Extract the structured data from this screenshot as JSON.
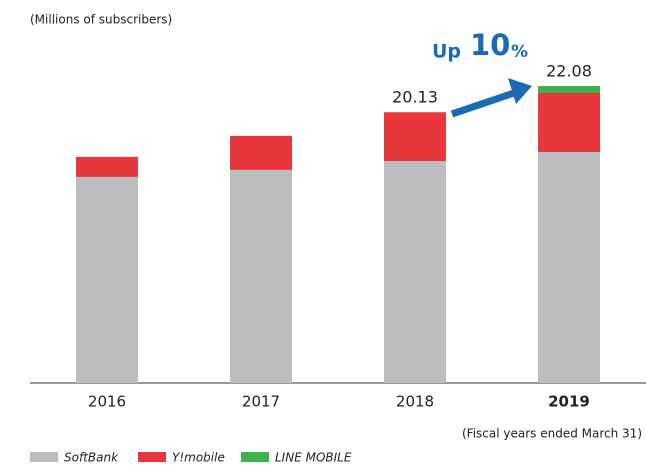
{
  "chart_data": {
    "type": "stacked_bar",
    "y_axis_label": "(Millions of subscribers)",
    "note": "(Fiscal years ended March 31)",
    "annotation": [
      "Up",
      "10",
      "%"
    ],
    "categories": [
      "2016",
      "2017",
      "2018",
      "2019"
    ],
    "highlight": "2019",
    "series": [
      {
        "name": "SoftBank",
        "color": "#bcbdbf",
        "values": [
          15.32,
          15.84,
          16.5,
          17.17
        ]
      },
      {
        "name": "Y!mobile",
        "color": "#e8383d",
        "values": [
          1.49,
          2.53,
          3.63,
          4.39
        ]
      },
      {
        "name": "LINE MOBILE",
        "color": "#3bb34a",
        "values": [
          0,
          0,
          0,
          0.52
        ]
      }
    ],
    "total_labels": [
      {
        "category": "2018",
        "label": "20.13"
      },
      {
        "category": "2019",
        "label": "22.08"
      }
    ]
  }
}
